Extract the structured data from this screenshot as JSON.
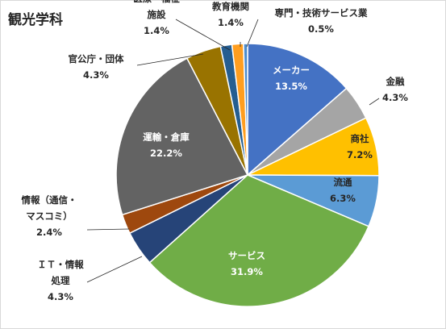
{
  "chart_data": {
    "type": "pie",
    "title": "観光学科",
    "slices": [
      {
        "label": [
          "メーカー"
        ],
        "percent_label": "13.5%",
        "value": 13.5,
        "color": "#4472C4"
      },
      {
        "label": [
          "金融"
        ],
        "percent_label": "4.3%",
        "value": 4.3,
        "color": "#A5A5A5"
      },
      {
        "label": [
          "商社"
        ],
        "percent_label": "7.2%",
        "value": 7.2,
        "color": "#FFC000"
      },
      {
        "label": [
          "流通"
        ],
        "percent_label": "6.3%",
        "value": 6.3,
        "color": "#5B9BD5"
      },
      {
        "label": [
          "サービス"
        ],
        "percent_label": "31.9%",
        "value": 31.9,
        "color": "#70AD47"
      },
      {
        "label": [
          "ＩＴ・情報",
          "処理"
        ],
        "percent_label": "4.3%",
        "value": 4.3,
        "color": "#264478"
      },
      {
        "label": [
          "情報（通信・",
          "マスコミ）"
        ],
        "percent_label": "2.4%",
        "value": 2.4,
        "color": "#9E480E"
      },
      {
        "label": [
          "運輸・倉庫"
        ],
        "percent_label": "22.2%",
        "value": 22.2,
        "color": "#636363"
      },
      {
        "label": [
          "官公庁・団体"
        ],
        "percent_label": "4.3%",
        "value": 4.3,
        "color": "#997300"
      },
      {
        "label": [
          "医療・福祉",
          "施設"
        ],
        "percent_label": "1.4%",
        "value": 1.4,
        "color": "#255E91"
      },
      {
        "label": [
          "教育機関"
        ],
        "percent_label": "1.4%",
        "value": 1.4,
        "color": "#FF9E1F"
      },
      {
        "label": [
          "専門・技術サービス業"
        ],
        "percent_label": "0.5%",
        "value": 0.5,
        "color": "#4E8DCC"
      }
    ]
  }
}
